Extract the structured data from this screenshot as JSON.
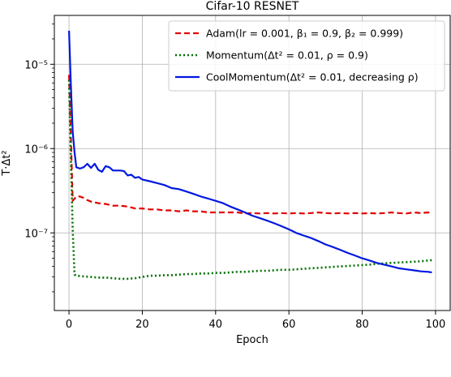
{
  "chart_data": {
    "type": "line",
    "title": "Cifar-10 RESNET",
    "xlabel": "Epoch",
    "ylabel": "T·Δt²",
    "xlim": [
      -4,
      104
    ],
    "ylim": [
      1.2e-08,
      3.8e-05
    ],
    "yscale": "log",
    "grid": true,
    "legend_position": "top-right",
    "xticks": [
      0,
      20,
      40,
      60,
      80,
      100
    ],
    "xtick_labels": [
      "0",
      "20",
      "40",
      "60",
      "80",
      "100"
    ],
    "yticks": [
      1e-07,
      1e-06,
      1e-05
    ],
    "ytick_labels": [
      "10⁻⁷",
      "10⁻⁶",
      "10⁻⁵"
    ],
    "series": [
      {
        "name": "Adam(lr = 0.001, β₁ = 0.9, β₂ = 0.999)",
        "color": "#e00000",
        "style": "dashed",
        "x": [
          0,
          0.5,
          1,
          2,
          3,
          4,
          5,
          6,
          8,
          10,
          12,
          14,
          16,
          18,
          20,
          22,
          24,
          26,
          28,
          30,
          32,
          34,
          36,
          38,
          40,
          42,
          44,
          46,
          48,
          50,
          52,
          54,
          56,
          58,
          60,
          62,
          64,
          66,
          68,
          70,
          72,
          74,
          76,
          78,
          80,
          82,
          84,
          86,
          88,
          90,
          92,
          94,
          96,
          98,
          99
        ],
        "y": [
          7.5e-06,
          1.5e-06,
          2.4e-07,
          2.7e-07,
          2.7e-07,
          2.6e-07,
          2.45e-07,
          2.35e-07,
          2.25e-07,
          2.2e-07,
          2.1e-07,
          2.1e-07,
          2.05e-07,
          1.95e-07,
          1.95e-07,
          1.9e-07,
          1.9e-07,
          1.85e-07,
          1.85e-07,
          1.8e-07,
          1.85e-07,
          1.8e-07,
          1.8e-07,
          1.75e-07,
          1.75e-07,
          1.75e-07,
          1.75e-07,
          1.75e-07,
          1.7e-07,
          1.72e-07,
          1.7e-07,
          1.72e-07,
          1.7e-07,
          1.72e-07,
          1.7e-07,
          1.72e-07,
          1.7e-07,
          1.72e-07,
          1.75e-07,
          1.72e-07,
          1.7e-07,
          1.72e-07,
          1.7e-07,
          1.72e-07,
          1.7e-07,
          1.72e-07,
          1.7e-07,
          1.72e-07,
          1.75e-07,
          1.72e-07,
          1.7e-07,
          1.75e-07,
          1.72e-07,
          1.75e-07,
          1.72e-07
        ]
      },
      {
        "name": "Momentum(Δt² = 0.01, ρ = 0.9)",
        "color": "#007000",
        "style": "dotted",
        "x": [
          0,
          0.5,
          1,
          1.5,
          2,
          4,
          6,
          8,
          10,
          12,
          14,
          16,
          18,
          20,
          22,
          24,
          26,
          28,
          30,
          32,
          34,
          36,
          38,
          40,
          42,
          44,
          46,
          48,
          50,
          52,
          54,
          56,
          58,
          60,
          62,
          64,
          66,
          68,
          70,
          72,
          74,
          76,
          78,
          80,
          82,
          84,
          86,
          88,
          90,
          92,
          94,
          96,
          98,
          99
        ],
        "y": [
          6.5e-06,
          8e-07,
          1.1e-07,
          3.2e-08,
          3.1e-08,
          3.05e-08,
          3e-08,
          2.95e-08,
          2.95e-08,
          2.9e-08,
          2.85e-08,
          2.85e-08,
          2.9e-08,
          3e-08,
          3.1e-08,
          3.1e-08,
          3.15e-08,
          3.15e-08,
          3.2e-08,
          3.25e-08,
          3.25e-08,
          3.3e-08,
          3.3e-08,
          3.35e-08,
          3.35e-08,
          3.4e-08,
          3.45e-08,
          3.45e-08,
          3.5e-08,
          3.55e-08,
          3.55e-08,
          3.6e-08,
          3.65e-08,
          3.65e-08,
          3.7e-08,
          3.75e-08,
          3.8e-08,
          3.85e-08,
          3.9e-08,
          3.95e-08,
          4e-08,
          4.05e-08,
          4.1e-08,
          4.15e-08,
          4.2e-08,
          4.3e-08,
          4.35e-08,
          4.4e-08,
          4.45e-08,
          4.5e-08,
          4.55e-08,
          4.6e-08,
          4.7e-08,
          4.75e-08
        ]
      },
      {
        "name": "CoolMomentum(Δt² = 0.01, decreasing ρ)",
        "color": "#0018e0",
        "style": "solid",
        "x": [
          0,
          0.5,
          1,
          1.5,
          2,
          3,
          4,
          5,
          6,
          7,
          8,
          9,
          10,
          11,
          12,
          13,
          14,
          15,
          16,
          17,
          18,
          19,
          20,
          22,
          24,
          26,
          28,
          30,
          32,
          34,
          36,
          38,
          40,
          42,
          44,
          46,
          48,
          50,
          52,
          54,
          56,
          58,
          60,
          62,
          64,
          66,
          68,
          70,
          72,
          74,
          76,
          78,
          80,
          82,
          84,
          86,
          88,
          90,
          92,
          94,
          96,
          98,
          99
        ],
        "y": [
          2.5e-05,
          6e-06,
          1.6e-06,
          9e-07,
          6e-07,
          5.8e-07,
          6e-07,
          6.6e-07,
          5.9e-07,
          6.6e-07,
          5.6e-07,
          5.3e-07,
          6.2e-07,
          6e-07,
          5.5e-07,
          5.5e-07,
          5.5e-07,
          5.4e-07,
          4.8e-07,
          4.9e-07,
          4.5e-07,
          4.6e-07,
          4.3e-07,
          4.1e-07,
          3.9e-07,
          3.7e-07,
          3.4e-07,
          3.3e-07,
          3.1e-07,
          2.9e-07,
          2.7e-07,
          2.55e-07,
          2.4e-07,
          2.25e-07,
          2.05e-07,
          1.9e-07,
          1.75e-07,
          1.6e-07,
          1.5e-07,
          1.4e-07,
          1.3e-07,
          1.2e-07,
          1.1e-07,
          1e-07,
          9.3e-08,
          8.7e-08,
          8e-08,
          7.3e-08,
          6.8e-08,
          6.3e-08,
          5.8e-08,
          5.4e-08,
          5e-08,
          4.7e-08,
          4.4e-08,
          4.2e-08,
          4e-08,
          3.8e-08,
          3.7e-08,
          3.6e-08,
          3.5e-08,
          3.45e-08,
          3.4e-08
        ]
      }
    ]
  }
}
